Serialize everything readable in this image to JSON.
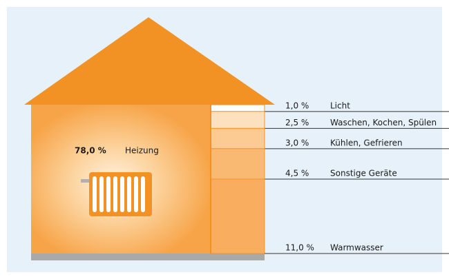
{
  "chart_data": {
    "type": "house",
    "categories": [
      "Heizung",
      "Licht",
      "Waschen, Kochen, Spülen",
      "Kühlen, Gefrieren",
      "Sonstige Geräte",
      "Warmwasser"
    ],
    "values": [
      78,
      1,
      2.5,
      3,
      4.5,
      11
    ],
    "value_labels": [
      "78,0 %",
      "1,0 %",
      "2,5 %",
      "3,0 %",
      "4,5 %",
      "11,0 %"
    ],
    "colors": [
      "#f7a448",
      "#ffffff",
      "#fde0bd",
      "#fccb94",
      "#fab973",
      "#f9ae5f"
    ]
  }
}
